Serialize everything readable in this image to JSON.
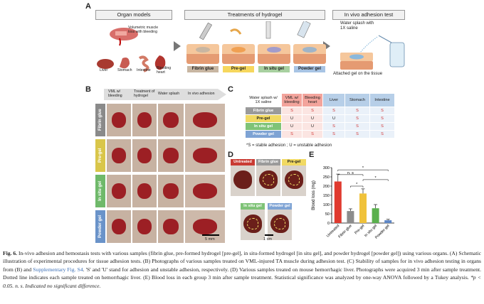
{
  "panel_labels": {
    "a": "A",
    "b": "B",
    "c": "C",
    "d": "D",
    "e": "E"
  },
  "panelA": {
    "header_models": "Organ models",
    "header_treat": "Treatments  of hydrogel",
    "header_adhesion": "In vivo adhesion test",
    "vml_text": "Volumetric muscle loss with bleeding",
    "organs": [
      "Liver",
      "Stomach",
      "Intestine",
      "Bleeding heart"
    ],
    "treatments": [
      "Fibrin glue",
      "Pre-gel",
      "In situ gel",
      "Powder gel"
    ],
    "splash_text": "Water splash with 1X saline",
    "attached_text": "Attached gel on the tissue",
    "colors": {
      "fibrin": "#c8b6a2",
      "pregel": "#f6d75d",
      "insitu": "#a8d0a0",
      "powder": "#a8c4e4"
    }
  },
  "panelB": {
    "col_headers": [
      "VML w/ bleeding",
      "Treatment of hydrogel",
      "Water splash",
      "In vivo adhesion"
    ],
    "row_labels": [
      "Fibrin glue",
      "Pre-gel",
      "In situ gel",
      "Powder gel"
    ],
    "row_colors": [
      "#8a8a8a",
      "#d9c64a",
      "#6fb96a",
      "#6a93c9"
    ],
    "scale": "5 mm"
  },
  "panelC": {
    "headers": [
      "Water splash w/ 1X saline",
      "VML w/ bleeding",
      "Bleeding heart",
      "Liver",
      "Stomach",
      "Intestine"
    ],
    "rows": [
      {
        "label": "Fibrin glue",
        "vals": [
          "S",
          "S",
          "S",
          "S",
          "S"
        ]
      },
      {
        "label": "Pre-gel",
        "vals": [
          "U",
          "U",
          "U",
          "S",
          "S"
        ]
      },
      {
        "label": "In situ gel",
        "vals": [
          "U",
          "U",
          "S",
          "S",
          "S"
        ]
      },
      {
        "label": "Powder gel",
        "vals": [
          "S",
          "S",
          "S",
          "S",
          "S"
        ]
      }
    ],
    "footnote": "*S = stable adhesion ; U = unstable adhesion"
  },
  "panelD": {
    "labels": [
      "Untreated",
      "Fibrin glue",
      "Pre-gel",
      "In situ gel",
      "Powder gel"
    ],
    "scale": "1 cm"
  },
  "chart_data": {
    "type": "bar",
    "categories": [
      "Untreated",
      "Fibrin glue",
      "Pre-gel",
      "In situ gel",
      "Powder gel"
    ],
    "values": [
      225,
      65,
      160,
      80,
      15
    ],
    "errors": [
      40,
      12,
      25,
      20,
      5
    ],
    "colors": [
      "#e03a2f",
      "#8c8c8c",
      "#f0c23b",
      "#5ab04d",
      "#5d86c6"
    ],
    "ylabel": "Blood loss (mg)",
    "yticks": [
      0,
      50,
      100,
      150,
      200,
      250,
      300
    ],
    "ylim": [
      0,
      300
    ],
    "annotations": [
      "n. s",
      "*",
      "*",
      "*"
    ]
  },
  "caption": {
    "lead": "Fig. 6.",
    "p1": "In-vivo adhesion and hemostasis tests with various samples (fibrin glue, pre-formed hydrogel [pre-gel], in situ-formed hydrogel [in situ gel], and powder hydrogel [powder gel]) using various organs. (A) Schematic illustration of experimental procedures for tissue adhesion tests. (B) Photographs of various samples treated on VML-injured TA muscle during adhesion test. (C) Stability of samples for in vivo adhesion testing in organs from (B) and ",
    "link": "Supplementary Fig. S4",
    "p2": ". 'S' and 'U' stand for adhesion and unstable adhesion, respectively. (D) Various samples treated on mouse hemorrhagic liver. Photographs were acquired 3 min after sample treatment. Dotted line indicates each sample treated on hemorrhagic liver. (E) Blood loss in each group 3 min after sample treatment. Statistical significance was analyzed by one-way ANOVA followed by a Tukey analysis. ",
    "sig": "*p < 0.05. n. s. Indicated no significant difference."
  }
}
